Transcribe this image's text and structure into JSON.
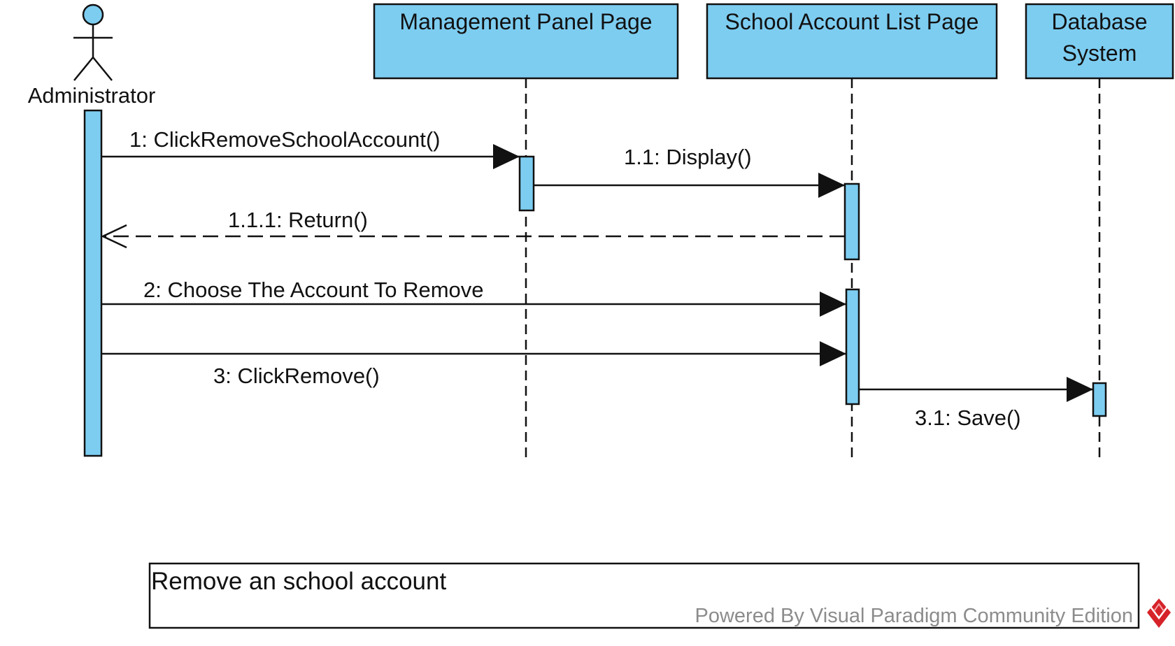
{
  "colors": {
    "fill": "#7dcdf1",
    "stroke": "#111111",
    "watermark": "#8c8c8c",
    "logo": "#d6232a"
  },
  "actor": {
    "label": "Administrator",
    "icon": "stick-figure-icon"
  },
  "lifelines": [
    {
      "id": "mgmt",
      "label": "Management Panel Page"
    },
    {
      "id": "list",
      "label": "School Account List Page"
    },
    {
      "id": "db",
      "label_lines": [
        "Database",
        "System"
      ]
    }
  ],
  "messages": [
    {
      "label": "1: ClickRemoveSchoolAccount()",
      "from": "Administrator",
      "to": "Management Panel Page",
      "kind": "synchronous"
    },
    {
      "label": "1.1: Display()",
      "from": "Management Panel Page",
      "to": "School Account List Page",
      "kind": "synchronous"
    },
    {
      "label": "1.1.1: Return()",
      "from": "School Account List Page",
      "to": "Administrator",
      "kind": "return"
    },
    {
      "label": "2: Choose The Account To Remove",
      "from": "Administrator",
      "to": "School Account List Page",
      "kind": "synchronous"
    },
    {
      "label": "3: ClickRemove()",
      "from": "Administrator",
      "to": "School Account List Page",
      "kind": "synchronous"
    },
    {
      "label": "3.1: Save()",
      "from": "School Account List Page",
      "to": "Database System",
      "kind": "synchronous"
    }
  ],
  "frame": {
    "title": "Remove an school account",
    "watermark": "Powered By  Visual Paradigm Community Edition",
    "logo_icon": "visual-paradigm-logo-icon"
  }
}
